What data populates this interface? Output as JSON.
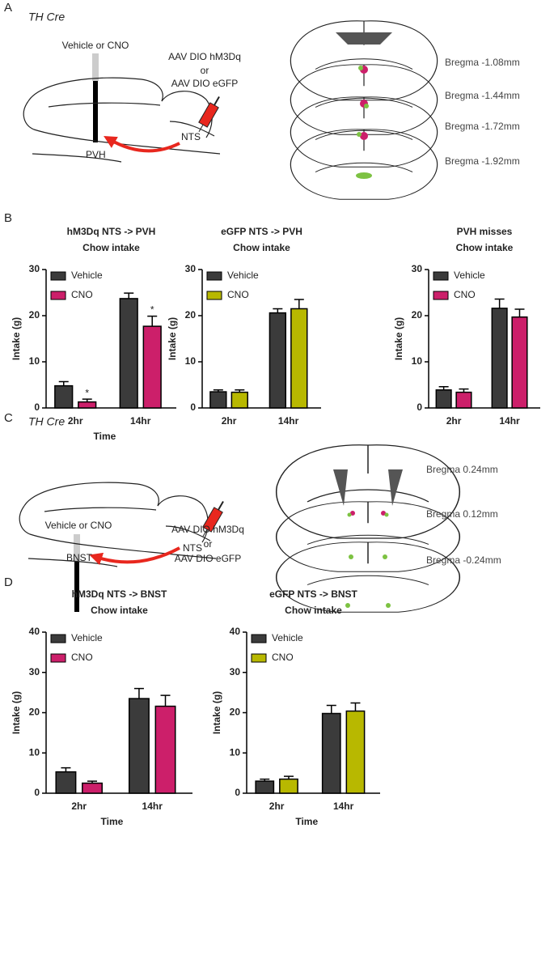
{
  "panel_labels": [
    "A",
    "B",
    "C",
    "D"
  ],
  "panel_a": {
    "genotype": "TH Cre",
    "injection": "Vehicle or CNO",
    "virus": [
      "AAV DIO hM3Dq",
      "or",
      "AAV DIO eGFP"
    ],
    "target": "PVH",
    "source": "NTS",
    "bregma": [
      "Bregma -1.08mm",
      "Bregma -1.44mm",
      "Bregma -1.72mm",
      "Bregma -1.92mm"
    ]
  },
  "panel_c": {
    "genotype": "TH Cre",
    "injection": "Vehicle or CNO",
    "virus": [
      "AAV DIO hM3Dq",
      "or",
      "AAV DIO eGFP"
    ],
    "target": "BNST",
    "source": "NTS",
    "bregma": [
      "Bregma 0.24mm",
      "Bregma 0.12mm",
      "Bregma -0.24mm"
    ]
  },
  "chart_data": [
    {
      "type": "bar",
      "title": "hM3Dq NTS -> PVH",
      "subtitle": "Chow intake",
      "ylabel": "Intake (g)",
      "xlabel": "Time",
      "categories": [
        "2hr",
        "14hr"
      ],
      "ylim": [
        0,
        30
      ],
      "yticks": [
        0,
        10,
        20,
        30
      ],
      "legend": "top-left",
      "series": [
        {
          "name": "Vehicle",
          "color": "#3b3b3b",
          "values": [
            4.8,
            23.7
          ],
          "errors": [
            0.9,
            1.2
          ]
        },
        {
          "name": "CNO",
          "color": "#cc1f6a",
          "values": [
            1.3,
            17.7
          ],
          "errors": [
            0.6,
            2.2
          ],
          "markers": [
            "*",
            "*"
          ]
        }
      ]
    },
    {
      "type": "bar",
      "title": "eGFP NTS -> PVH",
      "subtitle": "Chow intake",
      "ylabel": "Intake (g)",
      "categories": [
        "2hr",
        "14hr"
      ],
      "ylim": [
        0,
        30
      ],
      "yticks": [
        0,
        10,
        20,
        30
      ],
      "legend": "top-left",
      "series": [
        {
          "name": "Vehicle",
          "color": "#3b3b3b",
          "values": [
            3.5,
            20.6
          ],
          "errors": [
            0.4,
            0.9
          ]
        },
        {
          "name": "CNO",
          "color": "#b8b800",
          "values": [
            3.4,
            21.5
          ],
          "errors": [
            0.5,
            2.0
          ]
        }
      ]
    },
    {
      "type": "bar",
      "title": "PVH misses",
      "subtitle": "Chow intake",
      "ylabel": "Intake (g)",
      "categories": [
        "2hr",
        "14hr"
      ],
      "ylim": [
        0,
        30
      ],
      "yticks": [
        0,
        10,
        20,
        30
      ],
      "legend": "top-left",
      "series": [
        {
          "name": "Vehicle",
          "color": "#3b3b3b",
          "values": [
            3.9,
            21.6
          ],
          "errors": [
            0.7,
            2.0
          ]
        },
        {
          "name": "CNO",
          "color": "#cc1f6a",
          "values": [
            3.4,
            19.7
          ],
          "errors": [
            0.7,
            1.7
          ]
        }
      ]
    },
    {
      "type": "bar",
      "title": "hM3Dq NTS -> BNST",
      "subtitle": "Chow intake",
      "ylabel": "Intake (g)",
      "xlabel": "Time",
      "categories": [
        "2hr",
        "14hr"
      ],
      "ylim": [
        0,
        40
      ],
      "yticks": [
        0,
        10,
        20,
        30,
        40
      ],
      "legend": "top-left",
      "series": [
        {
          "name": "Vehicle",
          "color": "#3b3b3b",
          "values": [
            5.3,
            23.5
          ],
          "errors": [
            1.0,
            2.5
          ]
        },
        {
          "name": "CNO",
          "color": "#cc1f6a",
          "values": [
            2.5,
            21.6
          ],
          "errors": [
            0.5,
            2.7
          ]
        }
      ]
    },
    {
      "type": "bar",
      "title": "eGFP NTS -> BNST",
      "subtitle": "Chow intake",
      "ylabel": "Intake (g)",
      "xlabel": "Time",
      "categories": [
        "2hr",
        "14hr"
      ],
      "ylim": [
        0,
        40
      ],
      "yticks": [
        0,
        10,
        20,
        30,
        40
      ],
      "legend": "top-left",
      "series": [
        {
          "name": "Vehicle",
          "color": "#3b3b3b",
          "values": [
            3.0,
            19.8
          ],
          "errors": [
            0.5,
            2.0
          ]
        },
        {
          "name": "CNO",
          "color": "#b8b800",
          "values": [
            3.5,
            20.4
          ],
          "errors": [
            0.7,
            2.0
          ]
        }
      ]
    }
  ]
}
